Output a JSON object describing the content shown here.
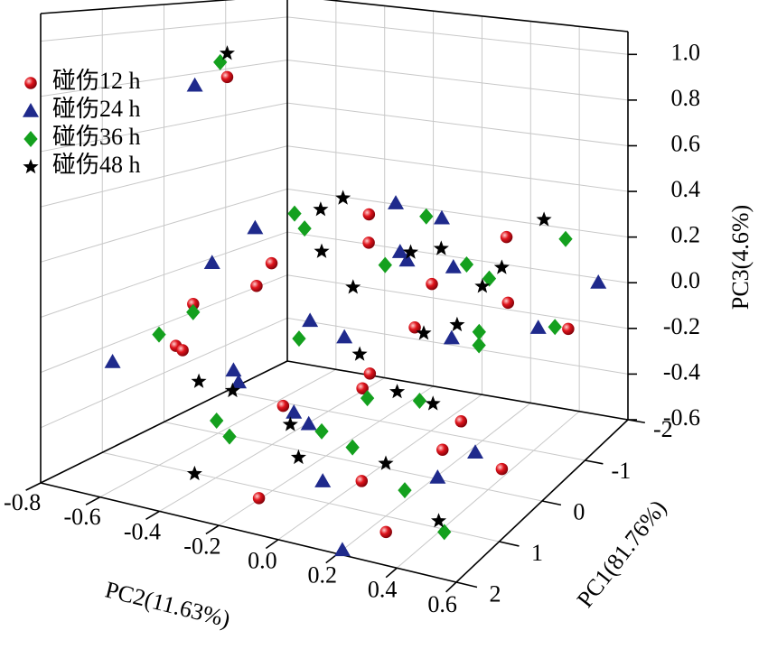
{
  "chart_data": {
    "type": "scatter3d",
    "xlabel": "PC1(81.76%)",
    "ylabel": "PC2(11.63%)",
    "zlabel": "PC3(4.6%)",
    "xlim": [
      -2,
      2
    ],
    "xticks": [
      -2,
      -1,
      0,
      1,
      2
    ],
    "ylim": [
      -0.8,
      0.6
    ],
    "yticks": [
      -0.8,
      -0.6,
      -0.4,
      -0.2,
      {
        "value": 0,
        "label": "0.0"
      },
      0.2,
      0.4,
      0.6
    ],
    "zlim": [
      -0.6,
      1.1
    ],
    "zticks": [
      -0.6,
      -0.4,
      -0.2,
      {
        "value": 0,
        "label": "0.0"
      },
      0.2,
      0.4,
      0.6,
      0.8,
      {
        "value": 1,
        "label": "1.0"
      }
    ],
    "grid": true,
    "legend": "upper left",
    "series": [
      {
        "name": "碰伤12 h",
        "color": "#e0141c",
        "marker": "sphere",
        "x": [
          0.5,
          1.2,
          0.8,
          -0.5,
          -1.0,
          1.5,
          0.2,
          -0.3,
          1.0,
          -1.2,
          0.6,
          1.8,
          0.0,
          -0.8,
          0.3,
          1.4,
          -0.2,
          0.9,
          -1.5,
          0.4,
          -0.6,
          1.6
        ],
        "y": [
          -0.3,
          -0.5,
          -0.2,
          0.1,
          0.3,
          0.2,
          0.0,
          -0.1,
          0.4,
          0.5,
          -0.6,
          -0.1,
          0.3,
          -0.2,
          0.5,
          -0.4,
          -0.5,
          0.1,
          0.2,
          0.2,
          -0.7,
          0.3
        ],
        "z": [
          0.2,
          -0.1,
          -0.3,
          0.1,
          0.0,
          -0.4,
          -0.2,
          0.25,
          -0.3,
          -0.1,
          -0.2,
          -0.5,
          -0.35,
          0.3,
          -0.45,
          0.1,
          0.0,
          -0.15,
          0.2,
          0.05,
          0.8,
          -0.55
        ]
      },
      {
        "name": "碰伤24 h",
        "color": "#1f2a8c",
        "marker": "triangle",
        "x": [
          0.3,
          1.1,
          -0.4,
          0.7,
          -1.1,
          1.7,
          0.1,
          -0.7,
          0.9,
          -1.6,
          1.3,
          0.5,
          -0.2,
          1.9,
          -0.9,
          0.0,
          0.6,
          -0.5,
          1.4,
          -1.3,
          0.8,
          0.2
        ],
        "y": [
          -0.4,
          -0.3,
          0.2,
          0.0,
          0.4,
          0.1,
          -0.6,
          0.1,
          0.5,
          0.55,
          -0.7,
          0.3,
          -0.3,
          0.2,
          -0.1,
          0.1,
          -0.2,
          -0.8,
          0.0,
          -0.2,
          0.4,
          -0.5
        ],
        "z": [
          0.3,
          -0.2,
          0.2,
          0.0,
          -0.1,
          -0.4,
          0.1,
          0.35,
          -0.3,
          0.05,
          -0.2,
          -0.5,
          -0.1,
          -0.6,
          0.15,
          0.25,
          -0.35,
          0.75,
          -0.25,
          0.3,
          0.1,
          -0.3
        ]
      },
      {
        "name": "碰伤36 h",
        "color": "#14a01e",
        "marker": "diamond",
        "x": [
          0.4,
          1.0,
          -0.6,
          0.8,
          -1.2,
          1.5,
          0.2,
          -0.4,
          1.2,
          -1.7,
          0.6,
          1.8,
          -0.1,
          0.9,
          -0.9,
          0.3,
          1.6,
          -0.7,
          0.0,
          -1.4,
          1.1,
          0.5
        ],
        "y": [
          -0.2,
          -0.6,
          0.3,
          0.1,
          0.1,
          -0.3,
          0.4,
          -0.4,
          0.3,
          0.4,
          -0.1,
          -0.2,
          0.0,
          -0.5,
          0.5,
          0.2,
          0.5,
          -0.75,
          -0.3,
          -0.1,
          0.1,
          0.45
        ],
        "z": [
          0.35,
          -0.1,
          0.15,
          -0.2,
          0.1,
          -0.3,
          0.0,
          0.3,
          -0.45,
          0.2,
          -0.4,
          -0.3,
          0.2,
          0.0,
          -0.05,
          -0.25,
          -0.5,
          0.85,
          -0.15,
          0.25,
          -0.35,
          0.1
        ]
      },
      {
        "name": "碰伤48 h",
        "color": "#000000",
        "marker": "star",
        "x": [
          0.6,
          1.3,
          -0.3,
          0.4,
          -1.0,
          1.6,
          0.1,
          -0.6,
          1.0,
          -1.5,
          0.7,
          1.9,
          -0.2,
          0.9,
          -0.8,
          0.2,
          1.4,
          -0.6,
          0.0,
          -1.2,
          1.2,
          0.5
        ],
        "y": [
          -0.1,
          -0.4,
          0.4,
          0.0,
          0.2,
          0.0,
          -0.2,
          0.0,
          0.2,
          0.35,
          -0.4,
          -0.3,
          0.25,
          0.35,
          -0.3,
          0.1,
          0.45,
          -0.7,
          -0.1,
          0.0,
          -0.1,
          0.25
        ],
        "z": [
          0.3,
          -0.2,
          0.25,
          -0.1,
          0.05,
          -0.35,
          0.4,
          0.2,
          -0.4,
          0.3,
          -0.3,
          -0.45,
          0.0,
          -0.15,
          0.35,
          -0.25,
          -0.5,
          0.9,
          0.1,
          0.15,
          -0.3,
          0.05
        ]
      }
    ]
  }
}
